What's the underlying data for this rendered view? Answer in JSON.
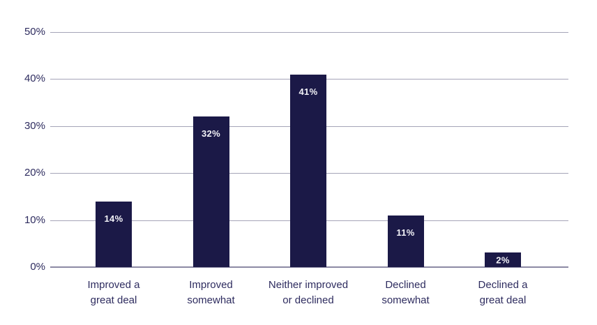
{
  "chart_data": {
    "type": "bar",
    "title": "",
    "xlabel": "",
    "ylabel": "",
    "categories": [
      "Improved a great deal",
      "Improved somewhat",
      "Neither improved or declined",
      "Declined somewhat",
      "Declined a great deal"
    ],
    "category_lines": [
      [
        "Improved a",
        "great deal"
      ],
      [
        "Improved",
        "somewhat"
      ],
      [
        "Neither improved",
        "or declined"
      ],
      [
        "Declined",
        "somewhat"
      ],
      [
        "Declined a",
        "great deal"
      ]
    ],
    "values": [
      14,
      32,
      41,
      11,
      2
    ],
    "value_labels": [
      "14%",
      "32%",
      "41%",
      "11%",
      "2%"
    ],
    "ylim": [
      0,
      50
    ],
    "ytick_step": 10,
    "ytick_labels": [
      "0%",
      "10%",
      "20%",
      "30%",
      "40%",
      "50%"
    ],
    "grid": "horizontal",
    "legend": "none"
  },
  "colors": {
    "bar": "#1b1947",
    "grid": "#a5a4b8",
    "axis": "#8c8aa4",
    "text": "#2e2c5f",
    "value_label": "#f2f2f7",
    "background": "#ffffff"
  }
}
